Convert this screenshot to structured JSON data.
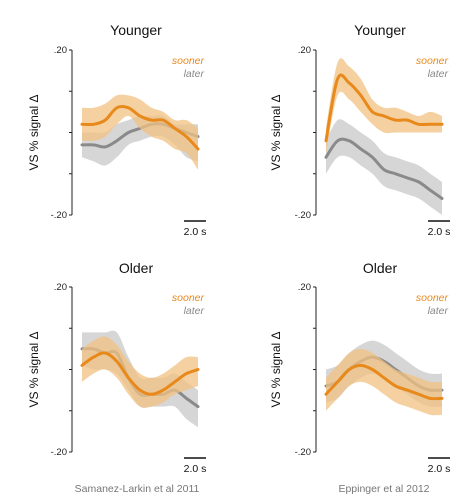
{
  "colors": {
    "sooner": "#e8891c",
    "later": "#8a8a8a",
    "sooner_band": "#f2c181",
    "later_band": "#c8c8c8"
  },
  "captions": {
    "left": "Samanez-Larkin et al 2011",
    "right": "Eppinger et al 2012"
  },
  "chart_data": [
    {
      "type": "line",
      "title": "Younger",
      "ylabel": "VS % signal Δ",
      "ylim": [
        -0.2,
        0.2
      ],
      "yticks": [
        ".20",
        "-.20"
      ],
      "scale_bar": "2.0 s",
      "series": [
        {
          "name": "sooner",
          "x": [
            0,
            1,
            2,
            3,
            4,
            5,
            6,
            7,
            8,
            9,
            10
          ],
          "y": [
            0.02,
            0.02,
            0.03,
            0.06,
            0.06,
            0.04,
            0.03,
            0.03,
            0.01,
            -0.01,
            -0.04
          ],
          "lower": [
            -0.02,
            -0.02,
            -0.01,
            0.02,
            0.04,
            0.01,
            -0.01,
            -0.02,
            -0.04,
            -0.05,
            -0.09
          ],
          "upper": [
            0.06,
            0.06,
            0.07,
            0.09,
            0.09,
            0.08,
            0.06,
            0.05,
            0.03,
            0.03,
            0.01
          ]
        },
        {
          "name": "later",
          "x": [
            0,
            1,
            2,
            3,
            4,
            5,
            6,
            7,
            8,
            9,
            10
          ],
          "y": [
            -0.03,
            -0.03,
            -0.035,
            -0.02,
            0.0,
            0.01,
            0.02,
            0.02,
            0.01,
            0.0,
            -0.01
          ],
          "lower": [
            -0.06,
            -0.07,
            -0.08,
            -0.06,
            -0.03,
            -0.02,
            -0.01,
            -0.01,
            -0.03,
            -0.06,
            -0.07
          ],
          "upper": [
            0.0,
            0.0,
            0.0,
            0.02,
            0.03,
            0.04,
            0.04,
            0.04,
            0.02,
            0.02,
            0.02
          ]
        }
      ]
    },
    {
      "type": "line",
      "title": "Younger",
      "ylabel": "VS % signal Δ",
      "ylim": [
        -0.2,
        0.2
      ],
      "yticks": [
        ".20",
        "-.20"
      ],
      "scale_bar": "2.0 s",
      "series": [
        {
          "name": "sooner",
          "x": [
            0,
            1,
            2,
            3,
            4,
            5,
            6,
            7,
            8,
            9,
            10
          ],
          "y": [
            -0.02,
            0.13,
            0.12,
            0.09,
            0.05,
            0.04,
            0.03,
            0.03,
            0.02,
            0.02,
            0.02
          ],
          "lower": [
            -0.05,
            0.09,
            0.08,
            0.05,
            0.02,
            0.0,
            0.0,
            0.0,
            0.0,
            0.0,
            0.0
          ],
          "upper": [
            0.01,
            0.17,
            0.16,
            0.13,
            0.08,
            0.06,
            0.06,
            0.05,
            0.04,
            0.05,
            0.04
          ]
        },
        {
          "name": "later",
          "x": [
            0,
            1,
            2,
            3,
            4,
            5,
            6,
            7,
            8,
            9,
            10
          ],
          "y": [
            -0.06,
            -0.02,
            -0.02,
            -0.04,
            -0.06,
            -0.09,
            -0.1,
            -0.11,
            -0.12,
            -0.14,
            -0.16
          ],
          "lower": [
            -0.1,
            -0.06,
            -0.06,
            -0.08,
            -0.1,
            -0.13,
            -0.14,
            -0.15,
            -0.16,
            -0.18,
            -0.2
          ],
          "upper": [
            -0.02,
            0.03,
            0.02,
            0.0,
            -0.02,
            -0.05,
            -0.06,
            -0.07,
            -0.08,
            -0.1,
            -0.12
          ]
        }
      ]
    },
    {
      "type": "line",
      "title": "Older",
      "ylabel": "VS % signal Δ",
      "ylim": [
        -0.2,
        0.2
      ],
      "yticks": [
        ".20",
        "-.20"
      ],
      "scale_bar": "2.0 s",
      "series": [
        {
          "name": "sooner",
          "x": [
            0,
            1,
            2,
            3,
            4,
            5,
            6,
            7,
            8,
            9,
            10
          ],
          "y": [
            0.01,
            0.03,
            0.04,
            0.02,
            -0.02,
            -0.05,
            -0.06,
            -0.05,
            -0.03,
            -0.01,
            0.0
          ],
          "lower": [
            -0.03,
            -0.01,
            0.0,
            -0.02,
            -0.06,
            -0.09,
            -0.09,
            -0.08,
            -0.06,
            -0.05,
            -0.04
          ],
          "upper": [
            0.05,
            0.07,
            0.08,
            0.06,
            0.02,
            -0.01,
            -0.02,
            -0.01,
            0.01,
            0.03,
            0.03
          ]
        },
        {
          "name": "later",
          "x": [
            0,
            1,
            2,
            3,
            4,
            5,
            6,
            7,
            8,
            9,
            10
          ],
          "y": [
            0.05,
            0.05,
            0.04,
            0.04,
            -0.02,
            -0.06,
            -0.06,
            -0.06,
            -0.05,
            -0.07,
            -0.09
          ],
          "lower": [
            0.01,
            0.0,
            0.0,
            -0.01,
            -0.05,
            -0.09,
            -0.09,
            -0.09,
            -0.09,
            -0.12,
            -0.14
          ],
          "upper": [
            0.09,
            0.09,
            0.09,
            0.09,
            0.03,
            -0.02,
            -0.02,
            -0.02,
            -0.01,
            -0.03,
            -0.05
          ]
        }
      ]
    },
    {
      "type": "line",
      "title": "Older",
      "ylabel": "VS % signal Δ",
      "ylim": [
        -0.2,
        0.2
      ],
      "yticks": [
        ".20",
        "-.20"
      ],
      "scale_bar": "2.0 s",
      "series": [
        {
          "name": "sooner",
          "x": [
            0,
            1,
            2,
            3,
            4,
            5,
            6,
            7,
            8,
            9,
            10
          ],
          "y": [
            -0.06,
            -0.03,
            0.0,
            0.01,
            0.0,
            -0.02,
            -0.04,
            -0.05,
            -0.06,
            -0.07,
            -0.07
          ],
          "lower": [
            -0.1,
            -0.07,
            -0.04,
            -0.03,
            -0.04,
            -0.06,
            -0.08,
            -0.09,
            -0.1,
            -0.11,
            -0.11
          ],
          "upper": [
            -0.02,
            0.01,
            0.04,
            0.05,
            0.04,
            0.02,
            0.0,
            -0.01,
            -0.02,
            -0.03,
            -0.03
          ]
        },
        {
          "name": "later",
          "x": [
            0,
            1,
            2,
            3,
            4,
            5,
            6,
            7,
            8,
            9,
            10
          ],
          "y": [
            -0.04,
            -0.03,
            0.0,
            0.02,
            0.03,
            0.02,
            0.0,
            -0.02,
            -0.04,
            -0.05,
            -0.05
          ],
          "lower": [
            -0.08,
            -0.07,
            -0.04,
            -0.02,
            -0.01,
            -0.02,
            -0.04,
            -0.06,
            -0.08,
            -0.09,
            -0.09
          ],
          "upper": [
            0.0,
            0.01,
            0.04,
            0.06,
            0.07,
            0.06,
            0.04,
            0.02,
            0.0,
            -0.01,
            -0.01
          ]
        }
      ]
    }
  ]
}
